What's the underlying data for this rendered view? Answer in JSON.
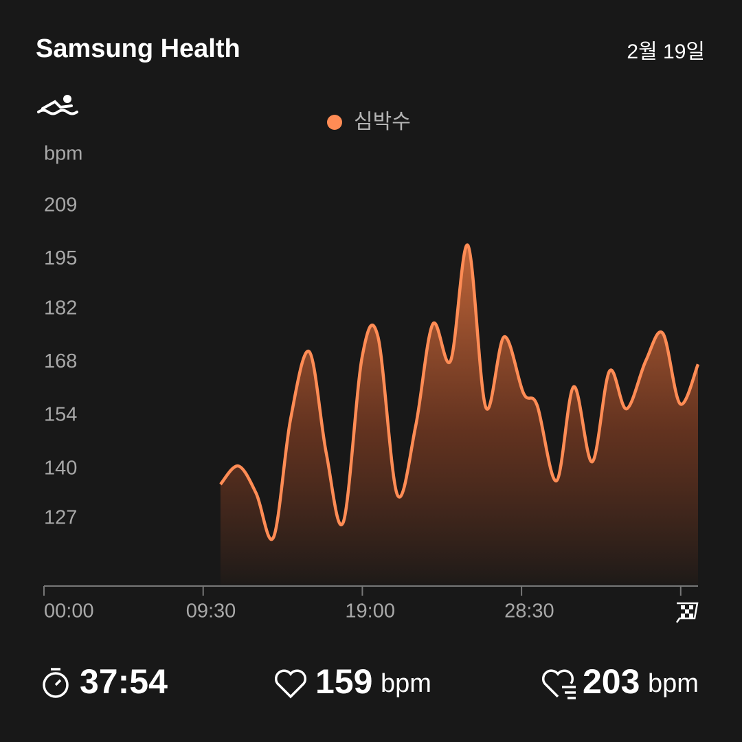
{
  "header": {
    "title": "Samsung Health",
    "date": "2월 19일"
  },
  "chart_data": {
    "type": "area",
    "ylabel": "bpm",
    "series": [
      {
        "name": "심박수",
        "color": "#ff8c55",
        "x": [
          632,
          696,
          760,
          822,
          883,
          950,
          1011,
          1072,
          1139,
          1196,
          1265,
          1331,
          1392,
          1456,
          1518,
          1582,
          1648,
          1717,
          1766,
          1835,
          1897,
          1963,
          2025,
          2086,
          2155,
          2216,
          2278,
          2342
        ],
        "values": [
          136.0,
          140.8,
          133.6,
          122.1,
          153.1,
          170.8,
          144.1,
          126.1,
          169.3,
          174.7,
          133.3,
          151.3,
          178.0,
          168.4,
          198.7,
          156.2,
          174.7,
          159.9,
          156.7,
          136.9,
          161.6,
          141.9,
          165.7,
          155.8,
          168.4,
          175.6,
          157.1,
          167.5
        ]
      }
    ],
    "xlim": [
      0,
      2342
    ],
    "xticks": [
      {
        "value": 0,
        "label": "00:00"
      },
      {
        "value": 570,
        "label": "09:30"
      },
      {
        "value": 1140,
        "label": "19:00"
      },
      {
        "value": 1710,
        "label": "28:30"
      },
      {
        "value": 2280,
        "label": null
      }
    ],
    "ylim": [
      109.3,
      218
    ],
    "yticks": [
      127,
      140,
      154,
      168,
      182,
      195,
      209
    ],
    "grid": false
  },
  "stats": {
    "duration": "37:54",
    "average_heart_rate": 159,
    "max_heart_rate": 203,
    "unit": "bpm"
  }
}
